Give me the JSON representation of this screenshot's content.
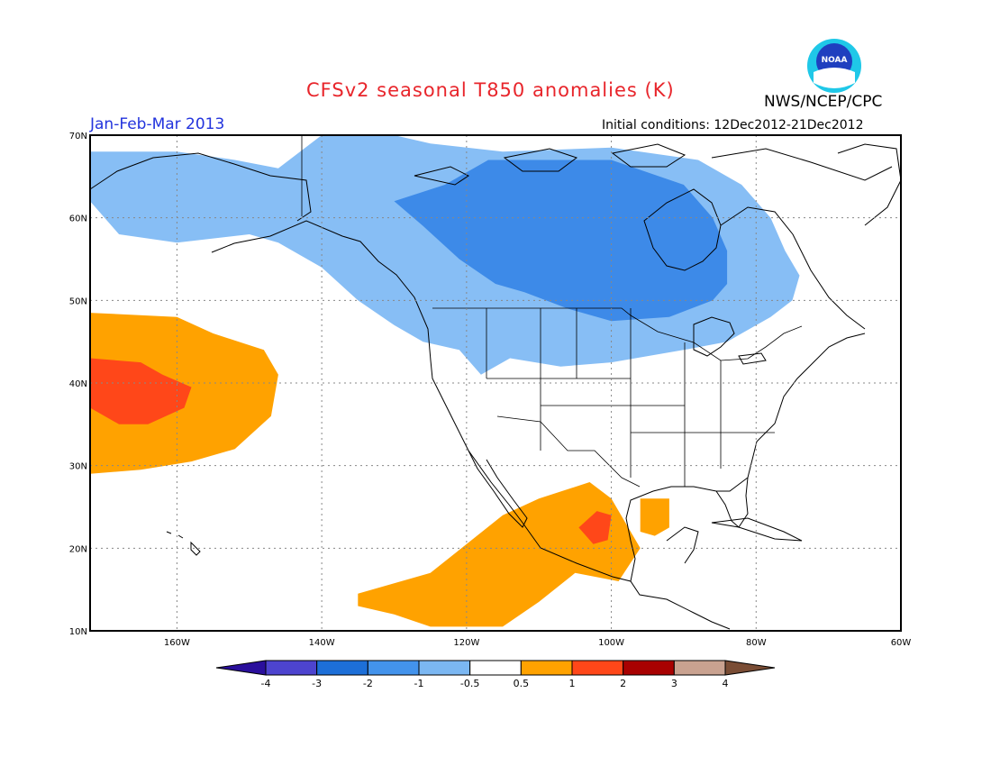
{
  "title": "CFSv2 seasonal T850 anomalies (K)",
  "season": "Jan-Feb-Mar 2013",
  "initial_conditions": "Initial conditions: 12Dec2012-21Dec2012",
  "agency": "NWS/NCEP/CPC",
  "logo_text": "NOAA",
  "map": {
    "projection": "lat-lon",
    "lon_range": [
      -172,
      -60
    ],
    "lat_range": [
      10,
      70
    ],
    "lon_ticks": [
      {
        "value": -160,
        "label": "160W"
      },
      {
        "value": -140,
        "label": "140W"
      },
      {
        "value": -120,
        "label": "120W"
      },
      {
        "value": -100,
        "label": "100W"
      },
      {
        "value": -80,
        "label": "80W"
      },
      {
        "value": -60,
        "label": "60W"
      }
    ],
    "lat_ticks": [
      {
        "value": 10,
        "label": "10N"
      },
      {
        "value": 20,
        "label": "20N"
      },
      {
        "value": 30,
        "label": "30N"
      },
      {
        "value": 40,
        "label": "40N"
      },
      {
        "value": 50,
        "label": "50N"
      },
      {
        "value": 60,
        "label": "60N"
      },
      {
        "value": 70,
        "label": "70N"
      }
    ],
    "grid": "dotted"
  },
  "colorbar": {
    "labels": [
      "-4",
      "-3",
      "-2",
      "-1",
      "-0.5",
      "0.5",
      "1",
      "2",
      "3",
      "4"
    ],
    "colors": [
      "#2a0f9c",
      "#4d44cf",
      "#1d6fd8",
      "#4393ec",
      "#7bb7f2",
      "#ffffff",
      "#ffa200",
      "#ff4719",
      "#a80101",
      "#c9a290",
      "#7a4d35"
    ]
  },
  "anomaly_regions": [
    {
      "name": "cold-light-north-america",
      "level": "-1 to -0.5",
      "color": "#87bef5",
      "points": [
        [
          -172,
          64
        ],
        [
          -172,
          68
        ],
        [
          -160,
          68
        ],
        [
          -152,
          67
        ],
        [
          -146,
          66
        ],
        [
          -140,
          70
        ],
        [
          -130,
          70
        ],
        [
          -125,
          69
        ],
        [
          -115,
          68
        ],
        [
          -100,
          68.5
        ],
        [
          -88,
          67
        ],
        [
          -82,
          64
        ],
        [
          -78,
          60
        ],
        [
          -76,
          56
        ],
        [
          -74,
          53
        ],
        [
          -75,
          50
        ],
        [
          -78,
          48
        ],
        [
          -82,
          46
        ],
        [
          -84,
          45
        ],
        [
          -90,
          44
        ],
        [
          -100,
          42.5
        ],
        [
          -107,
          42
        ],
        [
          -114,
          43
        ],
        [
          -118,
          41
        ],
        [
          -121,
          44
        ],
        [
          -126,
          45
        ],
        [
          -130,
          47
        ],
        [
          -135,
          50
        ],
        [
          -140,
          54
        ],
        [
          -146,
          57
        ],
        [
          -150,
          58
        ],
        [
          -160,
          57
        ],
        [
          -168,
          58
        ],
        [
          -172,
          62
        ]
      ]
    },
    {
      "name": "cold-medium-canada",
      "level": "-2 to -1",
      "color": "#3d8ae8",
      "points": [
        [
          -130,
          62
        ],
        [
          -123,
          64
        ],
        [
          -117,
          67
        ],
        [
          -108,
          67
        ],
        [
          -100,
          67
        ],
        [
          -90,
          64
        ],
        [
          -86,
          60
        ],
        [
          -84,
          56
        ],
        [
          -84,
          52
        ],
        [
          -86,
          50
        ],
        [
          -92,
          48
        ],
        [
          -100,
          47.5
        ],
        [
          -106,
          49
        ],
        [
          -112,
          51
        ],
        [
          -116,
          52
        ],
        [
          -121,
          55
        ],
        [
          -126,
          59
        ]
      ]
    },
    {
      "name": "warm-pacific-orange",
      "level": "0.5 to 1",
      "color": "#ffa200",
      "points": [
        [
          -172,
          29
        ],
        [
          -172,
          48.5
        ],
        [
          -160,
          48
        ],
        [
          -155,
          46
        ],
        [
          -148,
          44
        ],
        [
          -146,
          41
        ],
        [
          -147,
          36
        ],
        [
          -152,
          32
        ],
        [
          -158,
          30.5
        ],
        [
          -165,
          29.5
        ]
      ]
    },
    {
      "name": "warm-pacific-red",
      "level": "1 to 2",
      "color": "#ff4719",
      "points": [
        [
          -172,
          37
        ],
        [
          -172,
          43
        ],
        [
          -165,
          42.5
        ],
        [
          -162,
          41
        ],
        [
          -158,
          39.5
        ],
        [
          -159,
          37
        ],
        [
          -164,
          35
        ],
        [
          -168,
          35
        ]
      ]
    },
    {
      "name": "warm-mexico-orange",
      "level": "0.5 to 1",
      "color": "#ffa200",
      "points": [
        [
          -135,
          13
        ],
        [
          -135,
          14.5
        ],
        [
          -125,
          17
        ],
        [
          -120,
          20.5
        ],
        [
          -115,
          24
        ],
        [
          -110,
          26
        ],
        [
          -103,
          28
        ],
        [
          -100,
          26
        ],
        [
          -96,
          20
        ],
        [
          -99,
          16
        ],
        [
          -105,
          17
        ],
        [
          -110,
          13.5
        ],
        [
          -115,
          10.5
        ],
        [
          -125,
          10.5
        ],
        [
          -130,
          12
        ]
      ]
    },
    {
      "name": "warm-mexico-red",
      "level": "1 to 2",
      "color": "#ff4719",
      "points": [
        [
          -104.5,
          22.5
        ],
        [
          -102,
          24.5
        ],
        [
          -100,
          24
        ],
        [
          -100.5,
          21
        ],
        [
          -102.5,
          20.5
        ]
      ]
    },
    {
      "name": "warm-gulf-patch",
      "level": "0.5 to 1",
      "color": "#ffa200",
      "points": [
        [
          -96,
          22
        ],
        [
          -96,
          26
        ],
        [
          -92,
          26
        ],
        [
          -92,
          22.5
        ],
        [
          -94,
          21.5
        ]
      ]
    }
  ]
}
